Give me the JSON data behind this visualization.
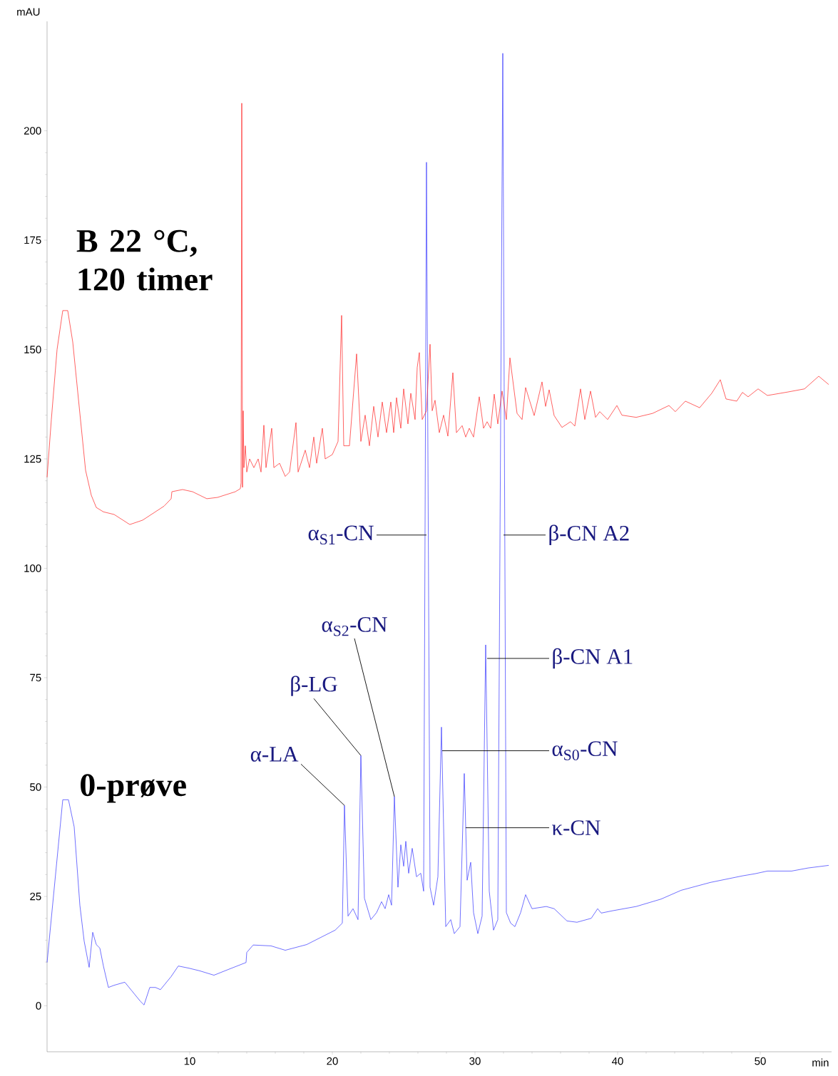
{
  "chart_data": {
    "type": "line",
    "xlabel": "min",
    "ylabel": "mAU",
    "xlim": [
      0,
      55
    ],
    "ylim": [
      -10.5,
      225
    ],
    "xticks": [
      10,
      20,
      30,
      40,
      50
    ],
    "yticks": [
      0,
      25,
      50,
      75,
      100,
      125,
      150,
      175,
      200
    ],
    "series": [
      {
        "name": "0-prøve",
        "color": "#3333ff",
        "x": [
          0,
          1.1,
          1.5,
          1.9,
          2.3,
          2.6,
          2.95,
          3.2,
          3.45,
          3.7,
          3.95,
          4.3,
          4.7,
          5.45,
          5.95,
          6.55,
          6.8,
          7.2,
          7.6,
          7.95,
          8.7,
          9.2,
          9.95,
          10.7,
          11.7,
          12.7,
          13.95,
          14.0,
          14.45,
          15.7,
          16.7,
          18.2,
          20.2,
          20.7,
          20.85,
          21.1,
          21.45,
          21.8,
          22.0,
          22.25,
          22.7,
          23.1,
          23.45,
          23.7,
          23.95,
          24.15,
          24.35,
          24.6,
          24.8,
          25.0,
          25.15,
          25.35,
          25.6,
          25.9,
          26.2,
          26.4,
          26.6,
          26.85,
          27.1,
          27.4,
          27.65,
          27.95,
          28.3,
          28.55,
          28.95,
          29.25,
          29.45,
          29.7,
          29.9,
          30.2,
          30.5,
          30.75,
          31.0,
          31.3,
          31.6,
          31.95,
          32.2,
          32.5,
          32.8,
          33.2,
          33.55,
          34.0,
          35.0,
          35.55,
          36.45,
          37.15,
          38.15,
          38.6,
          38.85,
          39.6,
          41.3,
          43.05,
          44.45,
          46.5,
          48.75,
          49.65,
          50.5,
          52.2,
          53.35,
          54.8
        ],
        "values": [
          9.9,
          47.1,
          47.1,
          40.9,
          23,
          14.8,
          8.8,
          16.8,
          14,
          13.2,
          9.1,
          4.2,
          4.7,
          5.4,
          3.4,
          1,
          0.2,
          4.2,
          4.2,
          3.7,
          6.7,
          9.1,
          8.6,
          8,
          7,
          8.3,
          9.9,
          12.2,
          13.9,
          13.7,
          12.7,
          14,
          17.3,
          18.9,
          45.8,
          20.5,
          22.2,
          19.7,
          57.2,
          24.6,
          19.7,
          21.3,
          23.8,
          22.2,
          25.4,
          23,
          47.8,
          27.1,
          36.8,
          31.9,
          37.6,
          30.3,
          36,
          29.5,
          30.3,
          26.2,
          192.8,
          27.1,
          23,
          29.5,
          63.7,
          18.1,
          19.7,
          16.5,
          18.1,
          53.1,
          28.7,
          32.8,
          21.3,
          16.5,
          20.5,
          82.5,
          26.2,
          17.3,
          19.7,
          217.7,
          21.3,
          18.9,
          18.1,
          21.3,
          25.4,
          22.2,
          22.7,
          22.2,
          19.4,
          19.1,
          20,
          22.2,
          21.2,
          21.7,
          22.7,
          24.4,
          26.4,
          28.2,
          29.7,
          30.2,
          30.8,
          30.8,
          31.5,
          32.1
        ]
      },
      {
        "name": "B 22 °C, 120 timer",
        "color": "#ff2020",
        "x": [
          0,
          0.3,
          0.7,
          1.1,
          1.45,
          1.8,
          2.3,
          2.7,
          3.1,
          3.45,
          3.95,
          4.7,
          5.8,
          6.7,
          8.2,
          8.7,
          8.75,
          9.5,
          10.2,
          11.2,
          11.95,
          13.2,
          13.55,
          13.6,
          13.65,
          13.7,
          13.75,
          13.8,
          13.9,
          14.0,
          14.2,
          14.5,
          14.8,
          15.0,
          15.2,
          15.35,
          15.75,
          15.9,
          16.3,
          16.7,
          17.0,
          17.45,
          17.6,
          17.9,
          18.1,
          18.4,
          18.7,
          18.9,
          19.3,
          19.5,
          20.0,
          20.4,
          20.65,
          20.8,
          21.2,
          21.7,
          22.0,
          22.3,
          22.6,
          22.9,
          23.2,
          23.5,
          23.8,
          24.1,
          24.3,
          24.5,
          24.8,
          25.0,
          25.3,
          25.5,
          25.8,
          25.95,
          26.1,
          26.3,
          26.6,
          26.85,
          27.0,
          27.2,
          27.5,
          27.8,
          28.1,
          28.45,
          28.7,
          29.1,
          29.35,
          29.6,
          29.9,
          30.3,
          30.6,
          30.85,
          31.1,
          31.35,
          31.6,
          31.9,
          32.2,
          32.45,
          32.95,
          33.3,
          33.55,
          34.15,
          34.7,
          34.95,
          35.2,
          35.55,
          36.1,
          36.7,
          37.0,
          37.4,
          37.7,
          38.1,
          38.45,
          38.75,
          39.3,
          39.95,
          40.3,
          41.3,
          42.45,
          43.6,
          44.05,
          44.75,
          45.75,
          46.6,
          47.2,
          47.6,
          48.35,
          48.75,
          49.15,
          49.85,
          50.5,
          51.05,
          51.95,
          53.1,
          54.1,
          54.8
        ],
        "values": [
          120.8,
          134,
          150,
          158.9,
          158.9,
          151.7,
          135.4,
          122.4,
          116.7,
          113.9,
          112.9,
          112.3,
          110,
          111,
          114.2,
          115.9,
          117.5,
          118,
          117.5,
          115.9,
          116.2,
          117.5,
          118.2,
          119.5,
          206.3,
          118.5,
          136,
          123,
          128,
          122,
          125,
          123,
          125,
          122,
          132.7,
          123,
          132,
          123,
          124,
          121,
          122,
          133.3,
          122,
          125,
          127,
          123,
          130,
          124,
          132,
          125,
          126,
          129,
          157.8,
          128,
          128,
          149,
          129,
          135,
          128,
          137,
          130,
          138,
          131,
          138,
          131,
          139,
          132,
          141,
          133,
          140,
          134,
          145.9,
          149.3,
          134,
          136,
          151.2,
          136,
          138.4,
          131,
          135,
          130.2,
          144.7,
          131,
          132.6,
          130,
          132,
          130,
          139.2,
          132,
          133.5,
          132,
          139.8,
          133,
          140.5,
          134,
          148.1,
          135.4,
          134,
          141.3,
          134.9,
          142.6,
          137,
          140.8,
          134.9,
          132.2,
          133.5,
          132.5,
          141,
          134,
          140.5,
          134.5,
          135.8,
          134,
          137.2,
          135,
          134.5,
          135.4,
          137.2,
          135.8,
          138.2,
          136.7,
          140,
          143.1,
          138.7,
          138.2,
          140.2,
          139.2,
          141,
          139.5,
          139.8,
          140.3,
          141,
          143.9,
          142
        ]
      }
    ],
    "annotations": [
      {
        "text": "α-LA",
        "x": 20.85,
        "y": 45.8
      },
      {
        "text": "β-LG",
        "x": 22.0,
        "y": 57.2
      },
      {
        "text": "α$_{S2}$-CN",
        "x": 24.35,
        "y": 47.8
      },
      {
        "text": "α$_{S1}$-CN",
        "x": 26.6,
        "y": 107.6
      },
      {
        "text": "β-CN A2",
        "x": 32.0,
        "y": 107.6
      },
      {
        "text": "β-CN A1",
        "x": 30.85,
        "y": 79.4
      },
      {
        "text": "α$_{S0}$-CN",
        "x": 27.7,
        "y": 58.3
      },
      {
        "text": "κ-CN",
        "x": 29.35,
        "y": 40.7
      }
    ]
  }
}
